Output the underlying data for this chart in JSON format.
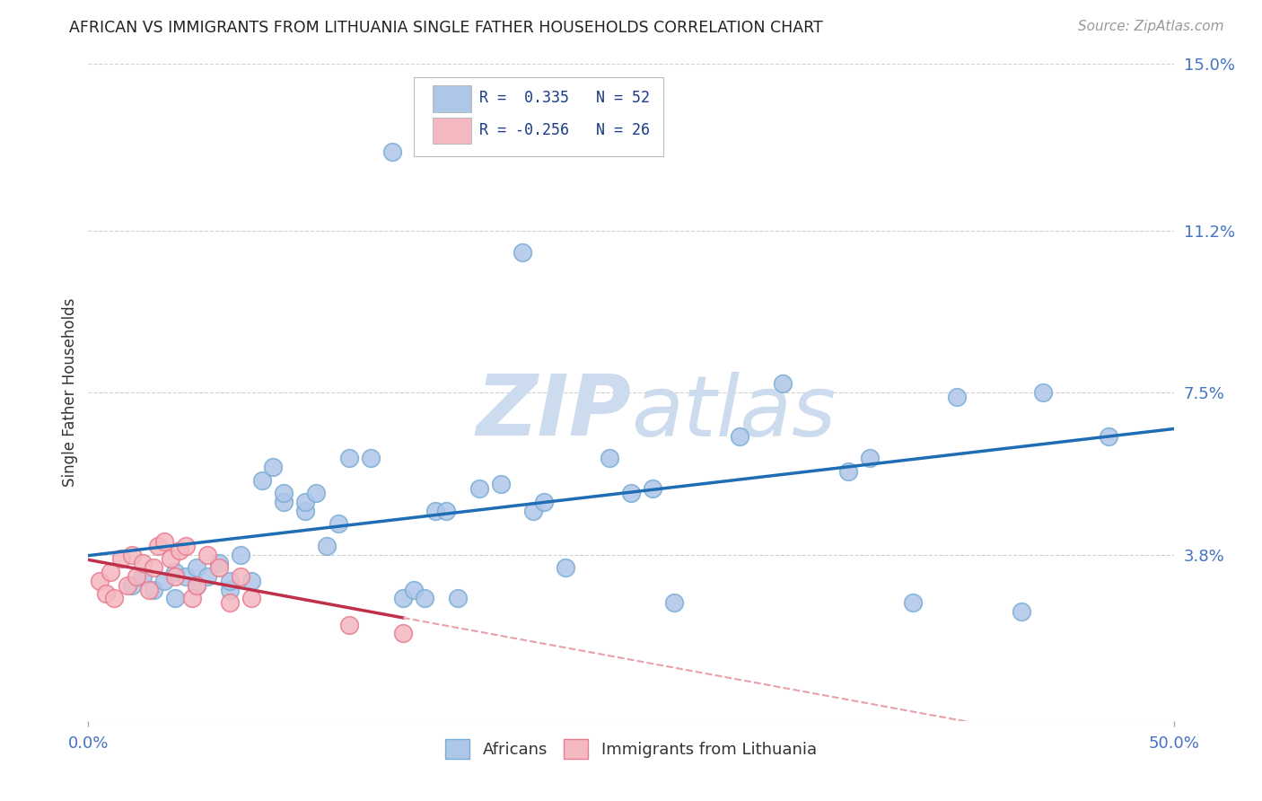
{
  "title": "AFRICAN VS IMMIGRANTS FROM LITHUANIA SINGLE FATHER HOUSEHOLDS CORRELATION CHART",
  "source": "Source: ZipAtlas.com",
  "ylabel": "Single Father Households",
  "xlim": [
    0.0,
    0.5
  ],
  "ylim": [
    0.0,
    0.15
  ],
  "yticks": [
    0.0,
    0.038,
    0.075,
    0.112,
    0.15
  ],
  "ytick_labels": [
    "",
    "3.8%",
    "7.5%",
    "11.2%",
    "15.0%"
  ],
  "xtick_labels": [
    "0.0%",
    "50.0%"
  ],
  "xticks": [
    0.0,
    0.5
  ],
  "legend_items": [
    {
      "color": "#aec6e8",
      "label": "R =  0.335   N = 52"
    },
    {
      "color": "#f4b8c1",
      "label": "R = -0.256   N = 26"
    }
  ],
  "africans_x": [
    0.02,
    0.025,
    0.03,
    0.035,
    0.04,
    0.04,
    0.045,
    0.05,
    0.05,
    0.055,
    0.06,
    0.065,
    0.065,
    0.07,
    0.075,
    0.08,
    0.085,
    0.09,
    0.09,
    0.1,
    0.1,
    0.105,
    0.11,
    0.115,
    0.12,
    0.13,
    0.14,
    0.145,
    0.15,
    0.155,
    0.16,
    0.165,
    0.17,
    0.18,
    0.19,
    0.2,
    0.205,
    0.21,
    0.22,
    0.24,
    0.25,
    0.26,
    0.27,
    0.3,
    0.32,
    0.35,
    0.36,
    0.38,
    0.4,
    0.43,
    0.44,
    0.47
  ],
  "africans_y": [
    0.031,
    0.033,
    0.03,
    0.032,
    0.034,
    0.028,
    0.033,
    0.035,
    0.031,
    0.033,
    0.036,
    0.03,
    0.032,
    0.038,
    0.032,
    0.055,
    0.058,
    0.05,
    0.052,
    0.048,
    0.05,
    0.052,
    0.04,
    0.045,
    0.06,
    0.06,
    0.13,
    0.028,
    0.03,
    0.028,
    0.048,
    0.048,
    0.028,
    0.053,
    0.054,
    0.107,
    0.048,
    0.05,
    0.035,
    0.06,
    0.052,
    0.053,
    0.027,
    0.065,
    0.077,
    0.057,
    0.06,
    0.027,
    0.074,
    0.025,
    0.075,
    0.065
  ],
  "lithuania_x": [
    0.005,
    0.008,
    0.01,
    0.012,
    0.015,
    0.018,
    0.02,
    0.022,
    0.025,
    0.028,
    0.03,
    0.032,
    0.035,
    0.038,
    0.04,
    0.042,
    0.045,
    0.048,
    0.05,
    0.055,
    0.06,
    0.065,
    0.07,
    0.075,
    0.12,
    0.145
  ],
  "lithuania_y": [
    0.032,
    0.029,
    0.034,
    0.028,
    0.037,
    0.031,
    0.038,
    0.033,
    0.036,
    0.03,
    0.035,
    0.04,
    0.041,
    0.037,
    0.033,
    0.039,
    0.04,
    0.028,
    0.031,
    0.038,
    0.035,
    0.027,
    0.033,
    0.028,
    0.022,
    0.02
  ],
  "african_color": "#aec6e8",
  "african_edge_color": "#7aadd4",
  "lithuania_color": "#f4b8c1",
  "lithuania_edge_color": "#e87d90",
  "trend_african_color": "#1f6eb5",
  "trend_lithuania_solid_color": "#c0304a",
  "trend_lithuania_dash_color": "#e8a0aa",
  "background_color": "#ffffff",
  "grid_color": "#cccccc"
}
